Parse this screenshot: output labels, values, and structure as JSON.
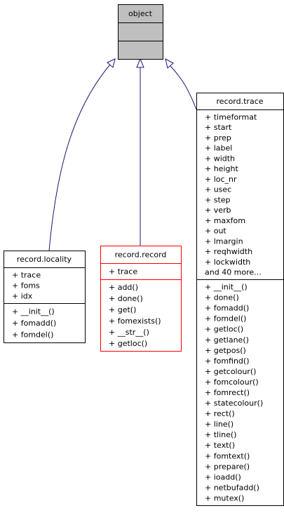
{
  "nodes": [
    {
      "name": "object",
      "attributes": [],
      "methods": []
    },
    {
      "name": "record.locality",
      "attributes": [
        "+ trace",
        "+ foms",
        "+ idx"
      ],
      "methods": [
        "+ __init__()",
        "+ fomadd()",
        "+ fomdel()"
      ]
    },
    {
      "name": "record.record",
      "attributes": [
        "+ trace"
      ],
      "methods": [
        "+ add()",
        "+ done()",
        "+ get()",
        "+ fomexists()",
        "+ __str__()",
        "+ getloc()"
      ]
    },
    {
      "name": "record.trace",
      "attributes": [
        "+ timeformat",
        "+ start",
        "+ prep",
        "+ label",
        "+ width",
        "+ height",
        "+ loc_nr",
        "+ usec",
        "+ step",
        "+ verb",
        "+ maxfom",
        "+ out",
        "+ lmargin",
        "+ reqhwidth",
        "+ lockwidth",
        "and 40 more..."
      ],
      "methods": [
        "+ __init__()",
        "+ done()",
        "+ fomadd()",
        "+ fomdel()",
        "+ getloc()",
        "+ getlane()",
        "+ getpos()",
        "+ fomfind()",
        "+ getcolour()",
        "+ fomcolour()",
        "+ fomrect()",
        "+ statecolour()",
        "+ rect()",
        "+ line()",
        "+ tline()",
        "+ text()",
        "+ fomtext()",
        "+ prepare()",
        "+ ioadd()",
        "+ netbufadd()",
        "+ mutex()"
      ]
    }
  ]
}
